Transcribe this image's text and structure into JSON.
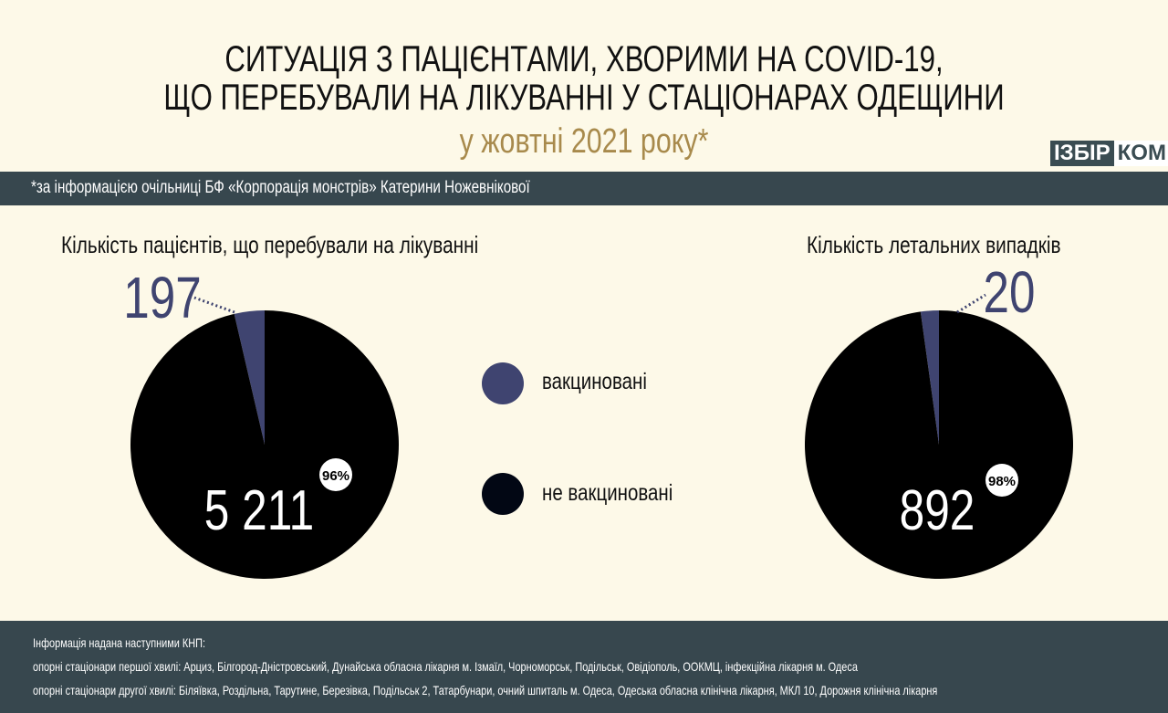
{
  "header": {
    "title_line1": "СИТУАЦІЯ З ПАЦІЄНТАМИ, ХВОРИМИ НА COVID-19,",
    "title_line2": "ЩО ПЕРЕБУВАЛИ НА ЛІКУВАННІ У СТАЦІОНАРАХ ОДЕЩИНИ",
    "subtitle": "у жовтні 2021 року*",
    "logo_part1": "ІЗБІР",
    "logo_part2": "КОМ"
  },
  "source_note": "*за інформацією очільниці БФ «Корпорація монстрів» Катерини Ножевнікової",
  "legend": [
    {
      "label": "вакциновані",
      "color": "#3f4470"
    },
    {
      "label": "не вакциновані",
      "color": "#020714"
    }
  ],
  "chart_data": [
    {
      "type": "pie",
      "title": "Кількість пацієнтів, що перебували на лікуванні",
      "slices": [
        {
          "name": "вакциновані",
          "value": 197,
          "label": "197",
          "color": "#3f4470"
        },
        {
          "name": "не вакциновані",
          "value": 5211,
          "label": "5 211",
          "percent_label": "96%",
          "color": "#000000"
        }
      ]
    },
    {
      "type": "pie",
      "title": "Кількість летальних випадків",
      "slices": [
        {
          "name": "вакциновані",
          "value": 20,
          "label": "20",
          "color": "#3f4470"
        },
        {
          "name": "не вакциновані",
          "value": 892,
          "label": "892",
          "percent_label": "98%",
          "color": "#000000"
        }
      ]
    }
  ],
  "footer": {
    "line1": "Інформація надана наступними КНП:",
    "line2": "опорні стаціонари першої хвилі: Арциз, Білгород-Дністровський, Дунайська обласна лікарня м. Ізмаїл, Чорноморськ, Подільськ, Овідіополь, ООКМЦ, інфекційна лікарня м. Одеса",
    "line3": "опорні стаціонари другої хвилі: Біляївка, Роздільна, Тарутине, Березівка, Подільськ 2, Татарбунари, очний шпиталь м. Одеса, Одеська обласна клінічна лікарня, МКЛ 10, Дорожня клінічна лікарня"
  }
}
